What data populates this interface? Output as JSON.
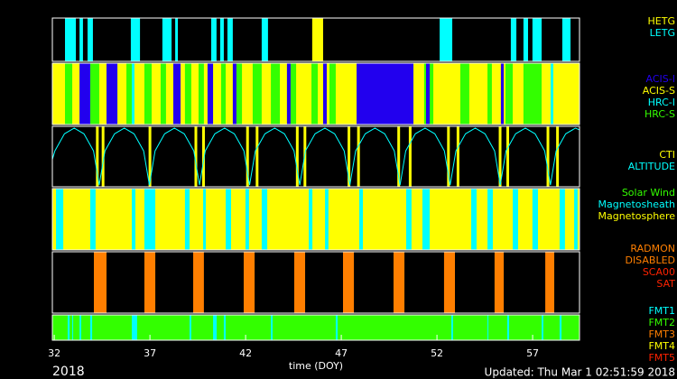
{
  "chart_data": {
    "type": "timeline",
    "x_label": "time (DOY)",
    "year": "2018",
    "updated": "Updated: Thu Mar  1 02:51:59 2018",
    "xlim": [
      31.9,
      59.45
    ],
    "xticks": [
      32,
      37,
      42,
      47,
      52,
      57
    ],
    "panels": [
      {
        "series": [
          {
            "name": "HETG",
            "color": "#ffff00",
            "intervals": [
              [
                45.48,
                46.05
              ]
            ]
          },
          {
            "name": "LETG",
            "color": "#00ffff",
            "intervals": [
              [
                32.56,
                33.13
              ],
              [
                33.32,
                33.5
              ],
              [
                33.74,
                34.02
              ],
              [
                36.0,
                36.48
              ],
              [
                37.65,
                38.13
              ],
              [
                38.32,
                38.46
              ],
              [
                40.2,
                40.48
              ],
              [
                40.67,
                40.86
              ],
              [
                41.05,
                41.33
              ],
              [
                42.84,
                43.17
              ],
              [
                52.14,
                52.8
              ],
              [
                55.86,
                56.15
              ],
              [
                56.52,
                56.76
              ],
              [
                56.99,
                57.47
              ],
              [
                58.55,
                58.98
              ]
            ]
          }
        ]
      },
      {
        "series": [
          {
            "name": "ACIS-I",
            "color": "#2200ee",
            "intervals": [
              [
                33.32,
                33.88
              ],
              [
                34.73,
                35.3
              ],
              [
                38.22,
                38.6
              ],
              [
                40.01,
                40.3
              ],
              [
                41.33,
                41.52
              ],
              [
                44.16,
                44.35
              ],
              [
                46.05,
                46.24
              ],
              [
                47.8,
                50.77
              ],
              [
                51.43,
                51.62
              ],
              [
                55.34,
                55.49
              ]
            ]
          },
          {
            "name": "ACIS-S",
            "color": "#ffff00",
            "intervals": [
              [
                31.9,
                59.45
              ]
            ]
          },
          {
            "name": "HRC-I",
            "color": "#00ffff",
            "intervals": [
              [
                36.05,
                36.19
              ],
              [
                57.94,
                58.08
              ]
            ]
          },
          {
            "name": "HRC-S",
            "color": "#33ff00",
            "intervals": [
              [
                32.56,
                32.94
              ],
              [
                33.88,
                34.35
              ],
              [
                35.77,
                36.05
              ],
              [
                36.71,
                37.09
              ],
              [
                37.56,
                37.84
              ],
              [
                38.83,
                39.16
              ],
              [
                39.54,
                39.82
              ],
              [
                40.72,
                40.96
              ],
              [
                41.52,
                41.81
              ],
              [
                42.37,
                42.84
              ],
              [
                43.32,
                43.79
              ],
              [
                44.26,
                44.64
              ],
              [
                45.44,
                45.77
              ],
              [
                46.38,
                46.71
              ],
              [
                48.98,
                49.35
              ],
              [
                50.01,
                50.3
              ],
              [
                51.33,
                51.81
              ],
              [
                53.22,
                53.69
              ],
              [
                54.64,
                54.87
              ],
              [
                55.58,
                55.96
              ],
              [
                56.52,
                57.47
              ]
            ]
          }
        ]
      },
      {
        "ylim": [
          0,
          1
        ],
        "series": [
          {
            "name": "CTI",
            "color": "#ffff00",
            "type": "events",
            "values": [
              34.25,
              34.55,
              37.0,
              39.4,
              39.8,
              42.1,
              42.6,
              44.7,
              45.1,
              47.4,
              47.9,
              50.0,
              50.6,
              52.6,
              53.1,
              55.3,
              55.7,
              57.8,
              58.3
            ]
          },
          {
            "name": "ALTITUDE",
            "color": "#00ffff",
            "type": "line",
            "x": [
              31.9,
              32.03,
              32.53,
              33.04,
              33.55,
              34.05,
              34.35,
              34.65,
              35.15,
              35.66,
              36.17,
              36.67,
              36.97,
              37.27,
              37.77,
              38.28,
              38.79,
              39.29,
              39.59,
              39.89,
              40.39,
              40.9,
              41.41,
              41.91,
              42.21,
              42.51,
              43.01,
              43.52,
              44.03,
              44.53,
              44.83,
              45.13,
              45.63,
              46.14,
              46.65,
              47.15,
              47.45,
              47.75,
              48.25,
              48.76,
              49.27,
              49.77,
              50.07,
              50.37,
              50.87,
              51.38,
              51.89,
              52.39,
              52.69,
              52.99,
              53.49,
              54.0,
              54.51,
              55.01,
              55.31,
              55.61,
              56.11,
              56.62,
              57.13,
              57.63,
              57.93,
              58.23,
              58.73,
              59.24,
              59.45
            ],
            "values": [
              0.45,
              0.6,
              0.9,
              1,
              0.9,
              0.6,
              0,
              0.6,
              0.9,
              1,
              0.9,
              0.6,
              0,
              0.6,
              0.9,
              1,
              0.9,
              0.6,
              0,
              0.6,
              0.9,
              1,
              0.9,
              0.6,
              0,
              0.6,
              0.9,
              1,
              0.9,
              0.6,
              0,
              0.6,
              0.9,
              1,
              0.9,
              0.6,
              0,
              0.6,
              0.9,
              1,
              0.9,
              0.6,
              0,
              0.6,
              0.9,
              1,
              0.9,
              0.6,
              0,
              0.6,
              0.9,
              1,
              0.9,
              0.6,
              0,
              0.6,
              0.9,
              1,
              0.9,
              0.6,
              0,
              0.6,
              0.9,
              1,
              0.97
            ]
          }
        ]
      },
      {
        "series": [
          {
            "name": "Solar Wind",
            "color": "#33ff00",
            "intervals": []
          },
          {
            "name": "Magnetosheath",
            "color": "#00ffff",
            "intervals": [
              [
                32.09,
                32.47
              ],
              [
                33.88,
                34.16
              ],
              [
                36.05,
                36.24
              ],
              [
                36.71,
                37.28
              ],
              [
                38.83,
                39.07
              ],
              [
                39.78,
                39.92
              ],
              [
                40.96,
                41.24
              ],
              [
                41.99,
                42.18
              ],
              [
                42.84,
                43.13
              ],
              [
                45.3,
                45.49
              ],
              [
                46.15,
                46.33
              ],
              [
                47.94,
                48.13
              ],
              [
                50.39,
                50.67
              ],
              [
                51.24,
                51.62
              ],
              [
                53.79,
                54.07
              ],
              [
                54.64,
                54.92
              ],
              [
                55.96,
                56.24
              ],
              [
                56.99,
                57.28
              ],
              [
                58.41,
                58.69
              ],
              [
                59.17,
                59.35
              ]
            ]
          },
          {
            "name": "Magnetosphere",
            "color": "#ffff00",
            "intervals": [
              [
                31.9,
                59.45
              ]
            ]
          }
        ]
      },
      {
        "series": [
          {
            "name": "RADMON",
            "color": "#ff7f00",
            "intervals": []
          },
          {
            "name": "DISABLED",
            "color": "#ff7f00",
            "intervals": [
              [
                34.07,
                34.73
              ],
              [
                36.71,
                37.28
              ],
              [
                39.26,
                39.82
              ],
              [
                41.9,
                42.47
              ],
              [
                44.54,
                45.11
              ],
              [
                47.09,
                47.66
              ],
              [
                49.73,
                50.3
              ],
              [
                52.37,
                52.94
              ],
              [
                55.01,
                55.49
              ],
              [
                57.66,
                58.13
              ]
            ]
          },
          {
            "name": "SCA00",
            "color": "#ff2200",
            "intervals": []
          },
          {
            "name": "SAT",
            "color": "#ff2200",
            "intervals": []
          }
        ]
      },
      {
        "series": [
          {
            "name": "FMT1",
            "color": "#00ffff",
            "intervals": [
              [
                32.7,
                32.8
              ],
              [
                32.94,
                32.98
              ],
              [
                33.32,
                33.41
              ],
              [
                33.88,
                33.98
              ],
              [
                36.05,
                36.33
              ],
              [
                39.07,
                39.16
              ],
              [
                40.3,
                40.49
              ],
              [
                40.86,
                40.96
              ],
              [
                43.32,
                43.41
              ],
              [
                46.71,
                46.81
              ],
              [
                52.75,
                52.84
              ],
              [
                54.64,
                54.68
              ],
              [
                55.67,
                55.77
              ],
              [
                57.47,
                57.56
              ],
              [
                58.41,
                58.51
              ]
            ]
          },
          {
            "name": "FMT2",
            "color": "#33ff00",
            "intervals": [
              [
                31.9,
                59.45
              ]
            ]
          },
          {
            "name": "FMT3",
            "color": "#ff7f00",
            "intervals": []
          },
          {
            "name": "FMT4",
            "color": "#ffff00",
            "intervals": []
          },
          {
            "name": "FMT5",
            "color": "#ff2200",
            "intervals": []
          }
        ]
      }
    ]
  }
}
